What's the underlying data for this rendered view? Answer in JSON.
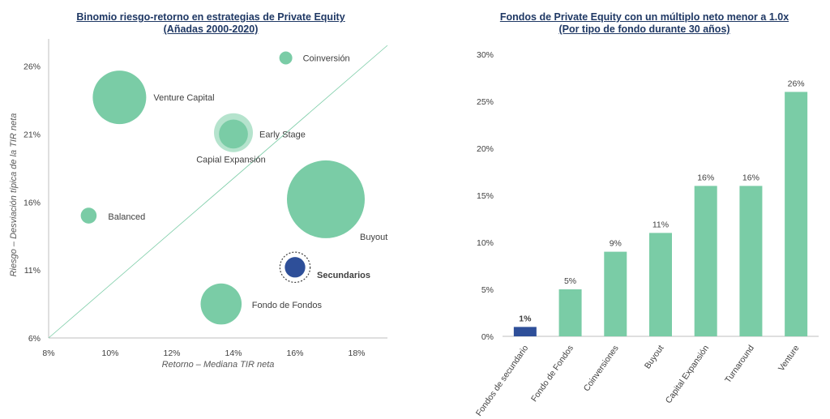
{
  "chart_data": [
    {
      "type": "scatter",
      "title": "Binomio riesgo-retorno en estrategias de Private Equity",
      "subtitle": "(Añadas 2000-2020)",
      "xlabel": "Retorno – Mediana TIR neta",
      "ylabel": "Riesgo – Desviación típica de la TIR neta",
      "xlim": [
        0.08,
        0.19
      ],
      "ylim": [
        0.06,
        0.28
      ],
      "xticks": [
        "8%",
        "10%",
        "12%",
        "14%",
        "16%",
        "18%"
      ],
      "xtick_values": [
        0.08,
        0.1,
        0.12,
        0.14,
        0.16,
        0.18
      ],
      "yticks": [
        "6%",
        "11%",
        "16%",
        "21%",
        "26%"
      ],
      "ytick_values": [
        0.06,
        0.11,
        0.16,
        0.21,
        0.26
      ],
      "reference_line": "diagonal",
      "points": [
        {
          "label": "Coinversión",
          "x": 0.157,
          "y": 0.266,
          "size": 1,
          "color": "#7acca6"
        },
        {
          "label": "Venture Capital",
          "x": 0.103,
          "y": 0.237,
          "size": 17,
          "color": "#7acca6"
        },
        {
          "label": "Early Stage",
          "x": 0.14,
          "y": 0.21,
          "size": 5,
          "color": "#7acca6"
        },
        {
          "label": "Capial Expansión",
          "x": 0.14,
          "y": 0.211,
          "size": 9,
          "color": "#b5e3cd"
        },
        {
          "label": "Balanced",
          "x": 0.093,
          "y": 0.15,
          "size": 1.5,
          "color": "#7acca6"
        },
        {
          "label": "Buyout",
          "x": 0.17,
          "y": 0.162,
          "size": 36,
          "color": "#7acca6"
        },
        {
          "label": "Secundarios",
          "x": 0.16,
          "y": 0.112,
          "size": 2.5,
          "color": "#2e4f99"
        },
        {
          "label": "Fondo de Fondos",
          "x": 0.136,
          "y": 0.085,
          "size": 10,
          "color": "#7acca6"
        }
      ]
    },
    {
      "type": "bar",
      "title": "Fondos de Private Equity con un múltiplo neto menor a 1.0x",
      "subtitle": "(Por tipo de fondo durante 30 años)",
      "categories": [
        "Fondos de secundario",
        "Fondo de Fondos",
        "Coinversiones",
        "Buyout",
        "Capital Expansión",
        "Turnaround",
        "Venture"
      ],
      "values": [
        1,
        5,
        9,
        11,
        16,
        16,
        26
      ],
      "data_labels": [
        "1%",
        "5%",
        "9%",
        "11%",
        "16%",
        "16%",
        "26%"
      ],
      "colors": [
        "#2e4f99",
        "#7acca6",
        "#7acca6",
        "#7acca6",
        "#7acca6",
        "#7acca6",
        "#7acca6"
      ],
      "ylim": [
        0,
        30
      ],
      "yticks": [
        "0%",
        "5%",
        "10%",
        "15%",
        "20%",
        "25%",
        "30%"
      ],
      "ytick_values": [
        0,
        5,
        10,
        15,
        20,
        25,
        30
      ]
    }
  ]
}
